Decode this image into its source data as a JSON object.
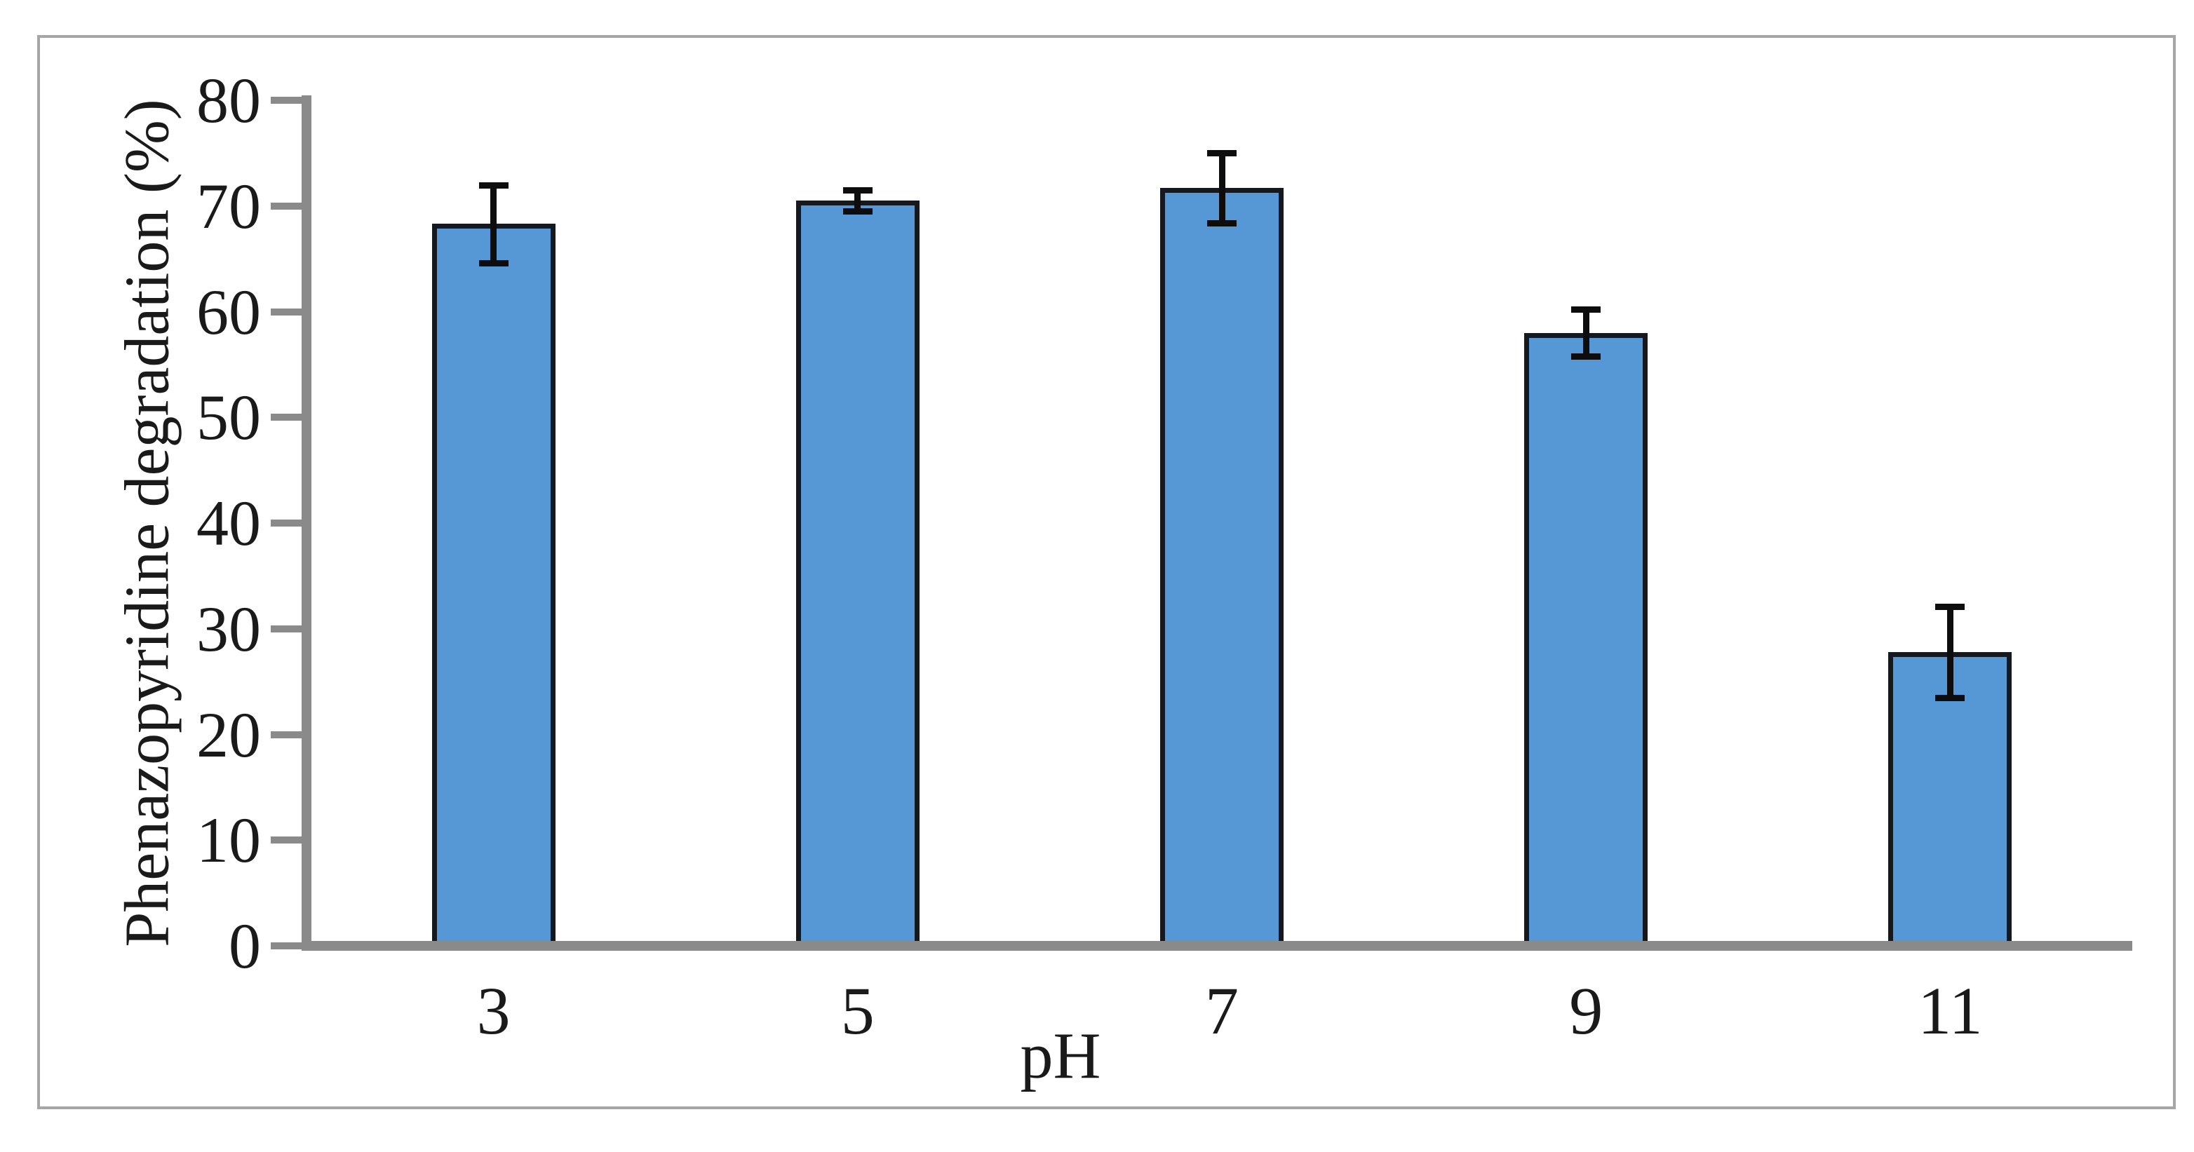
{
  "figure": {
    "background_color": "#ffffff",
    "frame_color": "#a6a6a6"
  },
  "chart_data": {
    "type": "bar",
    "title": "",
    "xlabel": "pH",
    "ylabel": "Phenazopyridine degradation (%)",
    "categories": [
      "3",
      "5",
      "7",
      "9",
      "11"
    ],
    "values": [
      68.3,
      70.5,
      71.7,
      58.0,
      27.8
    ],
    "error_bars": [
      3.7,
      1.0,
      3.3,
      2.2,
      4.3
    ],
    "ylim": [
      0,
      80
    ],
    "yticks": [
      0,
      10,
      20,
      30,
      40,
      50,
      60,
      70,
      80
    ],
    "grid": false,
    "legend": "none",
    "colors": {
      "bar_fill": "#5598d5",
      "bar_border": "#15191e",
      "error_bar": "#0d0d0d",
      "axis": "#8a8a8a",
      "text": "#1a1a1a"
    }
  }
}
